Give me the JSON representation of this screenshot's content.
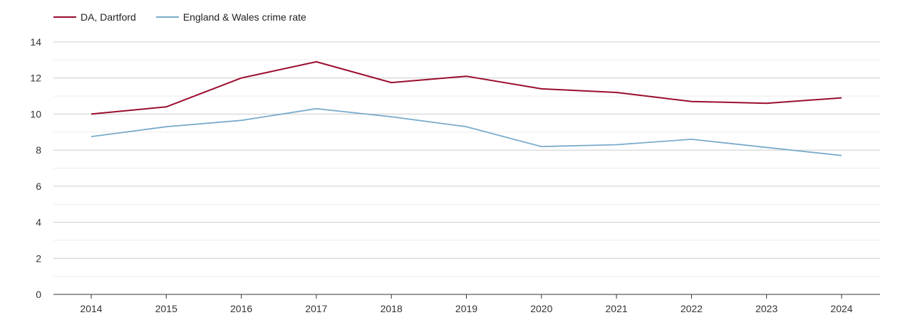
{
  "chart_data": {
    "type": "line",
    "title": "",
    "xlabel": "",
    "ylabel": "",
    "x": [
      "2014",
      "2015",
      "2016",
      "2017",
      "2018",
      "2019",
      "2020",
      "2021",
      "2022",
      "2023",
      "2024"
    ],
    "ylim": [
      0,
      14
    ],
    "yticks": [
      0,
      2,
      4,
      6,
      8,
      10,
      12,
      14
    ],
    "grid": true,
    "legend_position": "top-left",
    "series": [
      {
        "name": "DA, Dartford",
        "color": "#9b0d2e",
        "values": [
          10.0,
          10.4,
          12.0,
          12.9,
          11.75,
          12.1,
          11.4,
          11.2,
          10.7,
          10.6,
          10.9
        ]
      },
      {
        "name": "England & Wales crime rate",
        "color": "#7aaccc",
        "values": [
          8.75,
          9.3,
          9.65,
          10.3,
          9.85,
          9.3,
          8.2,
          8.3,
          8.6,
          8.15,
          7.7
        ]
      }
    ]
  }
}
